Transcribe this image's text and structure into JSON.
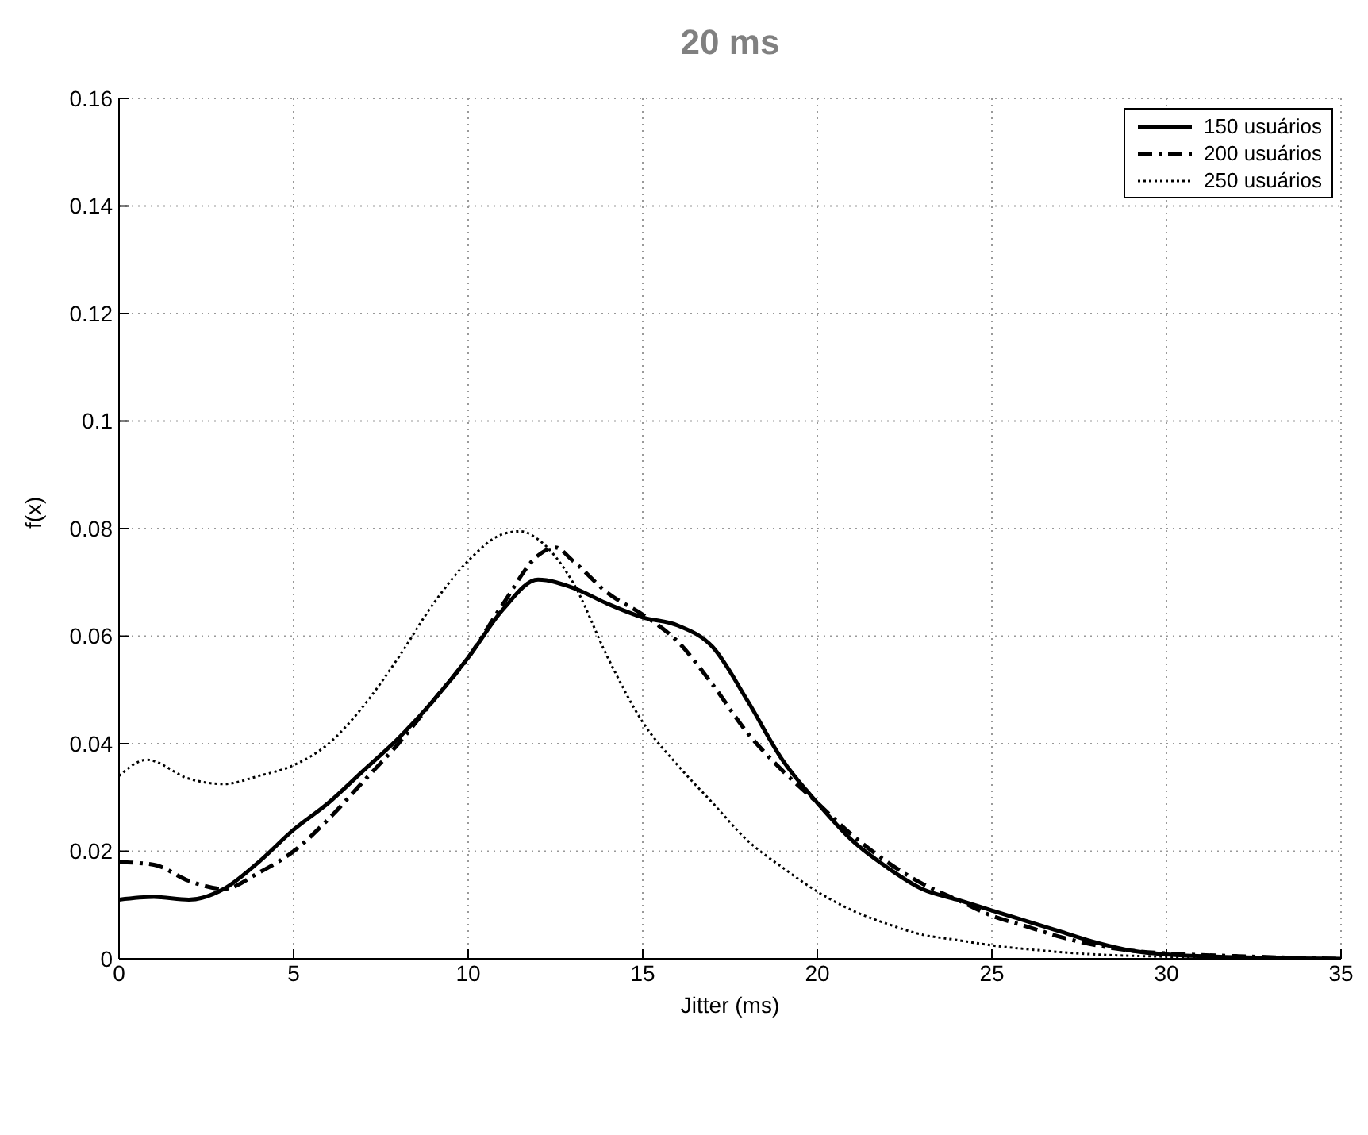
{
  "chart_data": {
    "type": "line",
    "title": "20 ms",
    "xlabel": "Jitter (ms)",
    "ylabel": "f(x)",
    "xlim": [
      0,
      35
    ],
    "xticks": [
      0,
      5,
      10,
      15,
      20,
      25,
      30,
      35
    ],
    "ylim": [
      0,
      0.16
    ],
    "yticks": [
      0,
      0.02,
      0.04,
      0.06,
      0.08,
      0.1,
      0.12,
      0.14,
      0.16
    ],
    "grid": true,
    "legend": "top right",
    "marker": "none",
    "series": [
      {
        "name": "150 usuários",
        "color": "#000000",
        "line_style": "solid",
        "x": [
          0,
          1,
          2,
          3,
          4,
          5,
          6,
          7,
          8,
          9,
          10,
          11,
          12,
          13,
          14,
          15,
          16,
          17,
          18,
          19,
          20,
          21,
          22,
          23,
          24,
          25,
          26,
          27,
          28,
          29,
          30,
          32,
          35
        ],
        "values": [
          0.011,
          0.0115,
          0.011,
          0.013,
          0.018,
          0.024,
          0.029,
          0.035,
          0.041,
          0.048,
          0.056,
          0.065,
          0.0705,
          0.069,
          0.066,
          0.0635,
          0.062,
          0.058,
          0.048,
          0.037,
          0.029,
          0.022,
          0.017,
          0.013,
          0.011,
          0.009,
          0.007,
          0.005,
          0.003,
          0.0015,
          0.0008,
          0.0003,
          0
        ]
      },
      {
        "name": "200 usuários",
        "color": "#000000",
        "line_style": "dashed",
        "x": [
          0,
          1,
          2,
          3,
          4,
          5,
          6,
          7,
          8,
          9,
          10,
          11,
          12,
          12.5,
          13,
          14,
          15,
          16,
          17,
          18,
          19,
          20,
          21,
          22,
          23,
          24,
          25,
          26,
          27,
          28,
          29,
          30,
          32,
          33,
          35
        ],
        "values": [
          0.018,
          0.0175,
          0.0145,
          0.013,
          0.016,
          0.02,
          0.026,
          0.033,
          0.04,
          0.048,
          0.056,
          0.066,
          0.075,
          0.0765,
          0.074,
          0.068,
          0.064,
          0.059,
          0.051,
          0.042,
          0.035,
          0.029,
          0.023,
          0.018,
          0.014,
          0.011,
          0.008,
          0.006,
          0.004,
          0.0025,
          0.0015,
          0.001,
          0.0005,
          0.0003,
          0
        ]
      },
      {
        "name": "250 usuários",
        "color": "#000000",
        "line_style": "dotted",
        "x": [
          0,
          0.8,
          2,
          3,
          4,
          5,
          6,
          7,
          8,
          9,
          10,
          11,
          11.5,
          12,
          13,
          14,
          15,
          16,
          17,
          18,
          19,
          20,
          21,
          22,
          23,
          24,
          25,
          26,
          28,
          30,
          32,
          35
        ],
        "values": [
          0.034,
          0.037,
          0.0335,
          0.0325,
          0.034,
          0.036,
          0.04,
          0.047,
          0.056,
          0.066,
          0.074,
          0.079,
          0.0795,
          0.078,
          0.07,
          0.056,
          0.044,
          0.036,
          0.029,
          0.022,
          0.017,
          0.0125,
          0.009,
          0.0065,
          0.0045,
          0.0035,
          0.0025,
          0.0018,
          0.0008,
          0.0004,
          0.0002,
          0
        ]
      }
    ]
  }
}
